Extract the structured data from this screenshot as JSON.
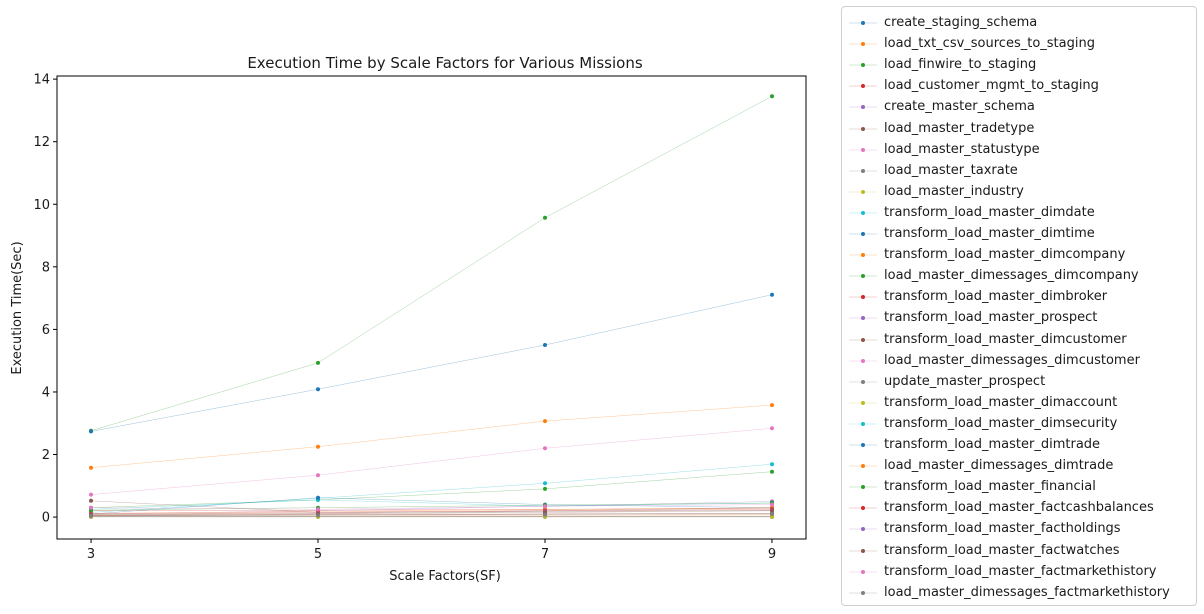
{
  "chart_data": {
    "type": "line",
    "title": "Execution Time by Scale Factors for Various Missions",
    "xlabel": "Scale Factors(SF)",
    "ylabel": "Execution Time(Sec)",
    "x": [
      3,
      5,
      7,
      9
    ],
    "x_ticks": [
      "3",
      "5",
      "7",
      "9"
    ],
    "y_ticks": [
      "0",
      "2",
      "4",
      "6",
      "8",
      "10",
      "12",
      "14"
    ],
    "xlim": [
      2.7,
      9.3
    ],
    "ylim": [
      -0.7,
      14.1
    ],
    "grid": false,
    "legend_position": "outside-right",
    "series": [
      {
        "name": "create_staging_schema",
        "color": "#1f77b4",
        "values": [
          0.02,
          0.02,
          0.02,
          0.02
        ]
      },
      {
        "name": "load_txt_csv_sources_to_staging",
        "color": "#ff7f0e",
        "values": [
          0.05,
          0.06,
          0.06,
          0.07
        ]
      },
      {
        "name": "load_finwire_to_staging",
        "color": "#2ca02c",
        "values": [
          2.76,
          4.93,
          9.57,
          13.45
        ]
      },
      {
        "name": "load_customer_mgmt_to_staging",
        "color": "#d62728",
        "values": [
          0.2,
          0.22,
          0.25,
          0.28
        ]
      },
      {
        "name": "create_master_schema",
        "color": "#9467bd",
        "values": [
          0.02,
          0.02,
          0.02,
          0.02
        ]
      },
      {
        "name": "load_master_tradetype",
        "color": "#8c564b",
        "values": [
          0.01,
          0.01,
          0.01,
          0.01
        ]
      },
      {
        "name": "load_master_statustype",
        "color": "#e377c2",
        "values": [
          0.01,
          0.01,
          0.01,
          0.01
        ]
      },
      {
        "name": "load_master_taxrate",
        "color": "#7f7f7f",
        "values": [
          0.01,
          0.01,
          0.01,
          0.01
        ]
      },
      {
        "name": "load_master_industry",
        "color": "#bcbd22",
        "values": [
          0.01,
          0.01,
          0.01,
          0.01
        ]
      },
      {
        "name": "transform_load_master_dimdate",
        "color": "#17becf",
        "values": [
          0.15,
          0.6,
          1.08,
          1.69
        ]
      },
      {
        "name": "transform_load_master_dimtime",
        "color": "#1f77b4",
        "values": [
          2.74,
          4.09,
          5.5,
          7.11
        ]
      },
      {
        "name": "transform_load_master_dimcompany",
        "color": "#ff7f0e",
        "values": [
          1.58,
          2.25,
          3.07,
          3.58
        ]
      },
      {
        "name": "load_master_dimessages_dimcompany",
        "color": "#2ca02c",
        "values": [
          0.3,
          0.55,
          0.9,
          1.45
        ]
      },
      {
        "name": "transform_load_master_dimbroker",
        "color": "#d62728",
        "values": [
          0.05,
          0.08,
          0.1,
          0.12
        ]
      },
      {
        "name": "transform_load_master_prospect",
        "color": "#9467bd",
        "values": [
          0.1,
          0.2,
          0.35,
          0.5
        ]
      },
      {
        "name": "transform_load_master_dimcustomer",
        "color": "#8c564b",
        "values": [
          0.52,
          0.15,
          0.2,
          0.3
        ]
      },
      {
        "name": "load_master_dimessages_dimcustomer",
        "color": "#e377c2",
        "values": [
          0.72,
          1.34,
          2.2,
          2.84
        ]
      },
      {
        "name": "update_master_prospect",
        "color": "#7f7f7f",
        "values": [
          0.05,
          0.07,
          0.1,
          0.12
        ]
      },
      {
        "name": "transform_load_master_dimaccount",
        "color": "#bcbd22",
        "values": [
          0.08,
          0.12,
          0.18,
          0.22
        ]
      },
      {
        "name": "transform_load_master_dimsecurity",
        "color": "#17becf",
        "values": [
          0.25,
          0.55,
          0.35,
          0.45
        ]
      },
      {
        "name": "transform_load_master_dimtrade",
        "color": "#1f77b4",
        "values": [
          0.1,
          0.62,
          0.4,
          0.3
        ]
      },
      {
        "name": "load_master_dimessages_dimtrade",
        "color": "#ff7f0e",
        "values": [
          0.12,
          0.18,
          0.24,
          0.3
        ]
      },
      {
        "name": "transform_load_master_financial",
        "color": "#2ca02c",
        "values": [
          0.22,
          0.3,
          0.38,
          0.45
        ]
      },
      {
        "name": "transform_load_master_factcashbalances",
        "color": "#d62728",
        "values": [
          0.1,
          0.15,
          0.2,
          0.25
        ]
      },
      {
        "name": "transform_load_master_factholdings",
        "color": "#9467bd",
        "values": [
          0.08,
          0.12,
          0.18,
          0.22
        ]
      },
      {
        "name": "transform_load_master_factwatches",
        "color": "#8c564b",
        "values": [
          0.06,
          0.1,
          0.15,
          0.2
        ]
      },
      {
        "name": "transform_load_master_factmarkethistory",
        "color": "#e377c2",
        "values": [
          0.3,
          0.25,
          0.35,
          0.4
        ]
      },
      {
        "name": "load_master_dimessages_factmarkethistory",
        "color": "#7f7f7f",
        "values": [
          0.04,
          0.06,
          0.08,
          0.1
        ]
      }
    ]
  }
}
